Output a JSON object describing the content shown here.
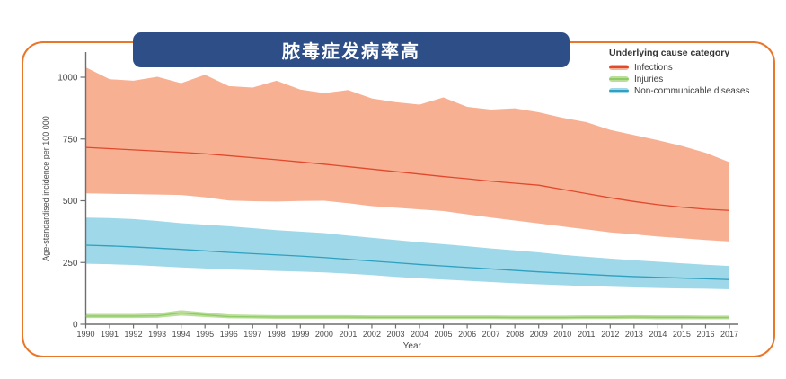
{
  "card": {
    "border_color": "#E8772A"
  },
  "banner": {
    "bg_color": "#2E4E87",
    "text_color": "#FFFFFF"
  },
  "legend": {
    "title": "Underlying cause category"
  },
  "chart_data": {
    "type": "area",
    "title": "脓毒症发病率高",
    "xlabel": "Year",
    "ylabel": "Age-standardised incidence per 100 000",
    "x": [
      1990,
      1991,
      1992,
      1993,
      1994,
      1995,
      1996,
      1997,
      1998,
      1999,
      2000,
      2001,
      2002,
      2003,
      2004,
      2005,
      2006,
      2007,
      2008,
      2009,
      2010,
      2011,
      2012,
      2013,
      2014,
      2015,
      2016,
      2017
    ],
    "ylim": [
      0,
      1050
    ],
    "yticks": [
      0,
      250,
      500,
      750,
      1000
    ],
    "grid": false,
    "legend_position": "top-right",
    "series": [
      {
        "name": "Infections",
        "line_color": "#E0492E",
        "band_color": "#F8B093",
        "mean": [
          716,
          711,
          706,
          701,
          696,
          690,
          682,
          674,
          666,
          657,
          648,
          638,
          628,
          618,
          608,
          598,
          589,
          579,
          571,
          563,
          546,
          529,
          512,
          497,
          484,
          474,
          466,
          461
        ],
        "upper": [
          1040,
          992,
          986,
          1002,
          976,
          1010,
          964,
          958,
          986,
          950,
          936,
          948,
          914,
          899,
          889,
          918,
          880,
          869,
          874,
          858,
          836,
          818,
          787,
          766,
          745,
          722,
          694,
          656
        ],
        "lower": [
          530,
          528,
          527,
          525,
          523,
          514,
          501,
          498,
          497,
          499,
          500,
          490,
          478,
          472,
          465,
          458,
          445,
          432,
          420,
          408,
          396,
          384,
          372,
          364,
          355,
          348,
          341,
          335
        ]
      },
      {
        "name": "Injuries",
        "line_color": "#8FCB67",
        "band_color": "#BBDF9B",
        "mean": [
          33,
          33,
          33,
          34,
          46,
          38,
          31,
          30,
          29,
          29,
          29,
          29,
          28,
          28,
          28,
          28,
          28,
          28,
          27,
          27,
          27,
          28,
          28,
          29,
          28,
          28,
          27,
          27
        ],
        "upper": [
          42,
          42,
          42,
          44,
          57,
          48,
          40,
          38,
          37,
          37,
          37,
          37,
          36,
          36,
          36,
          36,
          36,
          36,
          35,
          35,
          35,
          36,
          36,
          37,
          36,
          36,
          35,
          35
        ],
        "lower": [
          25,
          25,
          25,
          26,
          35,
          29,
          24,
          23,
          22,
          22,
          22,
          22,
          21,
          21,
          21,
          21,
          21,
          21,
          20,
          20,
          20,
          21,
          21,
          22,
          20,
          20,
          20,
          20
        ]
      },
      {
        "name": "Non-communicable diseases",
        "line_color": "#2FA0BF",
        "band_color": "#9FD8E8",
        "mean": [
          320,
          317,
          313,
          308,
          303,
          297,
          291,
          286,
          281,
          276,
          270,
          263,
          256,
          249,
          242,
          236,
          230,
          224,
          218,
          212,
          207,
          202,
          197,
          193,
          190,
          187,
          184,
          181
        ],
        "upper": [
          432,
          430,
          426,
          418,
          409,
          403,
          397,
          389,
          381,
          375,
          369,
          359,
          350,
          341,
          332,
          324,
          316,
          307,
          299,
          291,
          281,
          273,
          266,
          259,
          253,
          247,
          241,
          236
        ],
        "lower": [
          245,
          243,
          240,
          235,
          230,
          226,
          222,
          219,
          216,
          213,
          210,
          205,
          199,
          192,
          186,
          181,
          176,
          171,
          166,
          162,
          158,
          155,
          152,
          149,
          147,
          145,
          144,
          142
        ]
      }
    ]
  }
}
